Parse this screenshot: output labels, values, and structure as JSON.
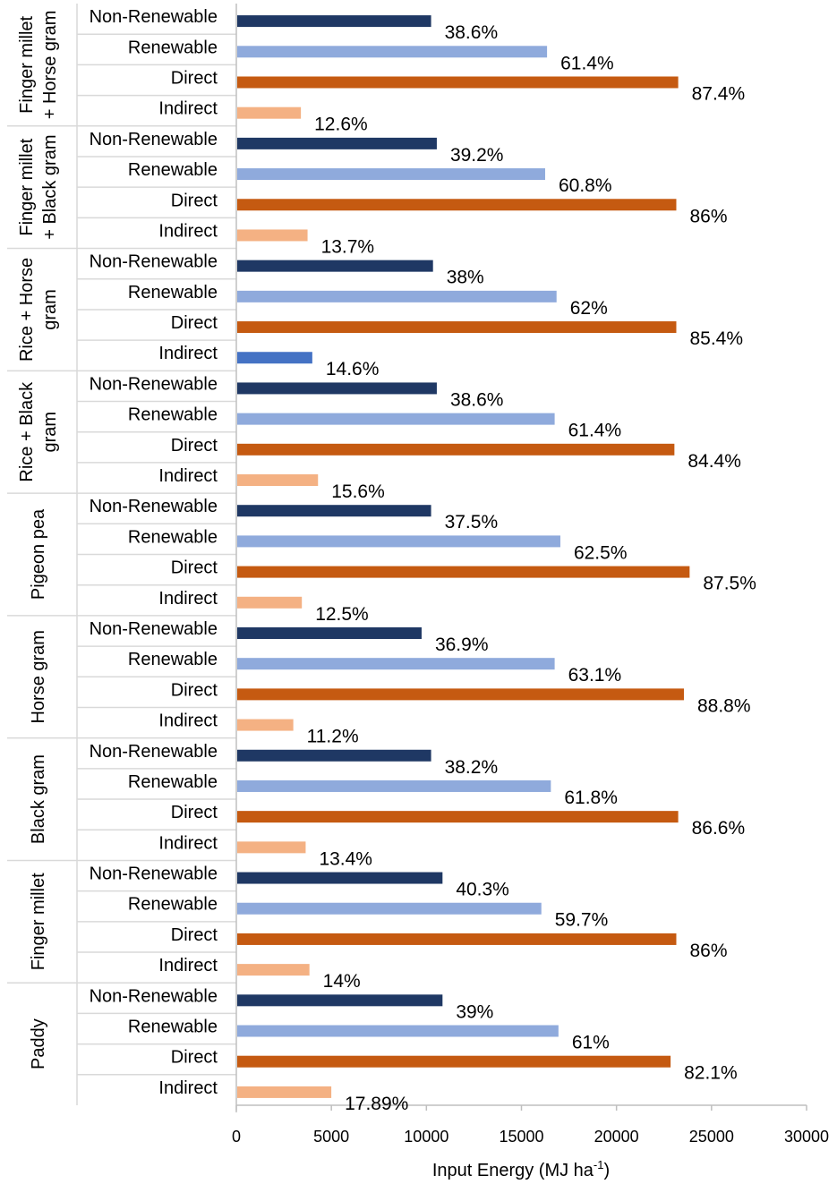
{
  "chart_data": {
    "type": "bar",
    "orientation": "horizontal",
    "xlabel": "Input Energy (MJ ha",
    "xlabel_sup": "-1",
    "xlabel_end": ")",
    "xlim": [
      0,
      30000
    ],
    "xticks": [
      "0",
      "5000",
      "10000",
      "15000",
      "20000",
      "25000",
      "30000"
    ],
    "colors": {
      "Non-Renewable": "#1f3864",
      "Renewable": "#8faadc",
      "Direct": "#c55a11",
      "Indirect": "#f4b183",
      "Indirect-highlight": "#4472c4"
    },
    "groups": [
      {
        "name_lines": [
          "Finger millet",
          "+ Horse gram"
        ],
        "bars": [
          {
            "category": "Non-Renewable",
            "value": 10200,
            "label": "38.6%"
          },
          {
            "category": "Renewable",
            "value": 16300,
            "label": "61.4%"
          },
          {
            "category": "Direct",
            "value": 23200,
            "label": "87.4%"
          },
          {
            "category": "Indirect",
            "value": 3350,
            "label": "12.6%"
          }
        ]
      },
      {
        "name_lines": [
          "Finger millet",
          "+ Black gram"
        ],
        "bars": [
          {
            "category": "Non-Renewable",
            "value": 10500,
            "label": "39.2%"
          },
          {
            "category": "Renewable",
            "value": 16200,
            "label": "60.8%"
          },
          {
            "category": "Direct",
            "value": 23100,
            "label": "86%"
          },
          {
            "category": "Indirect",
            "value": 3700,
            "label": "13.7%"
          }
        ]
      },
      {
        "name_lines": [
          "Rice + Horse",
          "gram"
        ],
        "bars": [
          {
            "category": "Non-Renewable",
            "value": 10300,
            "label": "38%"
          },
          {
            "category": "Renewable",
            "value": 16800,
            "label": "62%"
          },
          {
            "category": "Direct",
            "value": 23100,
            "label": "85.4%"
          },
          {
            "category": "Indirect",
            "value": 3950,
            "label": "14.6%",
            "highlight": true
          }
        ]
      },
      {
        "name_lines": [
          "Rice + Black",
          "gram"
        ],
        "bars": [
          {
            "category": "Non-Renewable",
            "value": 10500,
            "label": "38.6%"
          },
          {
            "category": "Renewable",
            "value": 16700,
            "label": "61.4%"
          },
          {
            "category": "Direct",
            "value": 23000,
            "label": "84.4%"
          },
          {
            "category": "Indirect",
            "value": 4250,
            "label": "15.6%"
          }
        ]
      },
      {
        "name_lines": [
          "Pigeon pea"
        ],
        "bars": [
          {
            "category": "Non-Renewable",
            "value": 10200,
            "label": "37.5%"
          },
          {
            "category": "Renewable",
            "value": 17000,
            "label": "62.5%"
          },
          {
            "category": "Direct",
            "value": 23800,
            "label": "87.5%"
          },
          {
            "category": "Indirect",
            "value": 3400,
            "label": "12.5%"
          }
        ]
      },
      {
        "name_lines": [
          "Horse gram"
        ],
        "bars": [
          {
            "category": "Non-Renewable",
            "value": 9700,
            "label": "36.9%"
          },
          {
            "category": "Renewable",
            "value": 16700,
            "label": "63.1%"
          },
          {
            "category": "Direct",
            "value": 23500,
            "label": "88.8%"
          },
          {
            "category": "Indirect",
            "value": 2950,
            "label": "11.2%"
          }
        ]
      },
      {
        "name_lines": [
          "Black gram"
        ],
        "bars": [
          {
            "category": "Non-Renewable",
            "value": 10200,
            "label": "38.2%"
          },
          {
            "category": "Renewable",
            "value": 16500,
            "label": "61.8%"
          },
          {
            "category": "Direct",
            "value": 23200,
            "label": "86.6%"
          },
          {
            "category": "Indirect",
            "value": 3600,
            "label": "13.4%"
          }
        ]
      },
      {
        "name_lines": [
          "Finger millet"
        ],
        "bars": [
          {
            "category": "Non-Renewable",
            "value": 10800,
            "label": "40.3%"
          },
          {
            "category": "Renewable",
            "value": 16000,
            "label": "59.7%"
          },
          {
            "category": "Direct",
            "value": 23100,
            "label": "86%"
          },
          {
            "category": "Indirect",
            "value": 3800,
            "label": "14%"
          }
        ]
      },
      {
        "name_lines": [
          "Paddy"
        ],
        "bars": [
          {
            "category": "Non-Renewable",
            "value": 10800,
            "label": "39%"
          },
          {
            "category": "Renewable",
            "value": 16900,
            "label": "61%"
          },
          {
            "category": "Direct",
            "value": 22800,
            "label": "82.1%"
          },
          {
            "category": "Indirect",
            "value": 4950,
            "label": "17.89%"
          }
        ]
      }
    ]
  }
}
